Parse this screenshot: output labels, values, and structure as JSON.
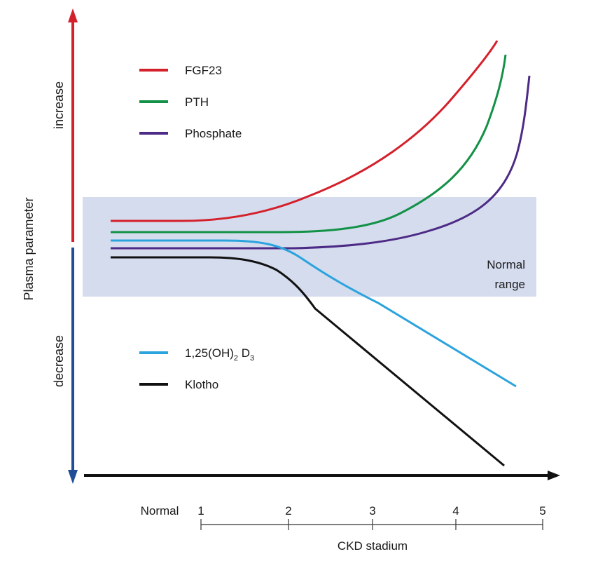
{
  "axes": {
    "y_title": "Plasma parameter",
    "increase_label": "increase",
    "decrease_label": "decrease",
    "x_title": "CKD stadium",
    "x_ticks": [
      "Normal",
      "1",
      "2",
      "3",
      "4",
      "5"
    ],
    "increase_color": "#d4202a",
    "decrease_color": "#1f4e96"
  },
  "normal_range": {
    "label_line1": "Normal",
    "label_line2": "range",
    "fill_color": "#d4dcee"
  },
  "legend_top": [
    {
      "label": "FGF23",
      "color": "#d4202a"
    },
    {
      "label": "PTH",
      "color": "#139146"
    },
    {
      "label": "Phosphate",
      "color": "#4d2a85"
    }
  ],
  "legend_bottom": [
    {
      "label_main": "1,25(OH)",
      "sub1": "2",
      "label_mid": " D",
      "sub2": "3",
      "color": "#2ba3dc"
    },
    {
      "label": "Klotho",
      "color": "#111111"
    }
  ],
  "curves": [
    {
      "id": "fgf23",
      "color": "#d4202a"
    },
    {
      "id": "pth",
      "color": "#139146"
    },
    {
      "id": "phosphate",
      "color": "#4d2a85"
    },
    {
      "id": "vitd",
      "color": "#2ba3dc"
    },
    {
      "id": "klotho",
      "color": "#111111"
    }
  ]
}
